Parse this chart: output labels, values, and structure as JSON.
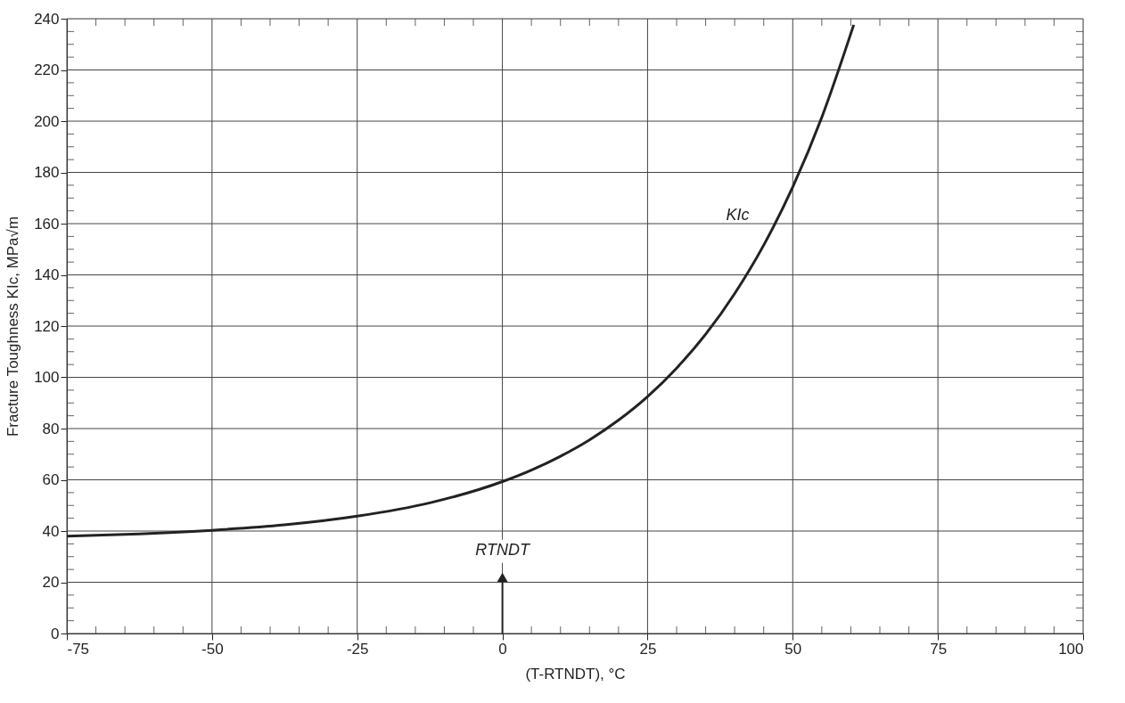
{
  "chart_data": {
    "type": "line",
    "xlabel": "(T-RTNDT), °C",
    "ylabel": "Fracture Toughness KIc, MPa√m",
    "x": [
      -75,
      -62.5,
      -50,
      -37.5,
      -25,
      -12.5,
      0,
      5,
      10,
      15,
      20,
      25,
      30,
      35,
      40,
      45,
      50,
      55,
      60.5
    ],
    "series": [
      {
        "color": "#222222",
        "values": [
          38,
          38.9,
          40.3,
          42.4,
          45.8,
          51,
          59.3,
          63.8,
          69.2,
          75.6,
          83.3,
          92.5,
          103.6,
          116.8,
          132.7,
          151.6,
          174.3,
          201.5,
          237.6
        ]
      }
    ],
    "xlim": [
      -75,
      100
    ],
    "xticks": [
      -75,
      {
        "value": -70,
        "label": null
      },
      {
        "value": -65,
        "label": null
      },
      {
        "value": -60,
        "label": null
      },
      {
        "value": -55,
        "label": null
      },
      -50,
      {
        "value": -45,
        "label": null
      },
      {
        "value": -40,
        "label": null
      },
      {
        "value": -35,
        "label": null
      },
      {
        "value": -30,
        "label": null
      },
      -25,
      {
        "value": -20,
        "label": null
      },
      {
        "value": -15,
        "label": null
      },
      {
        "value": -10,
        "label": null
      },
      {
        "value": -5,
        "label": null
      },
      0,
      {
        "value": 5,
        "label": null
      },
      {
        "value": 10,
        "label": null
      },
      {
        "value": 15,
        "label": null
      },
      {
        "value": 20,
        "label": null
      },
      25,
      {
        "value": 30,
        "label": null
      },
      {
        "value": 35,
        "label": null
      },
      {
        "value": 40,
        "label": null
      },
      {
        "value": 45,
        "label": null
      },
      50,
      {
        "value": 55,
        "label": null
      },
      {
        "value": 60,
        "label": null
      },
      {
        "value": 65,
        "label": null
      },
      {
        "value": 70,
        "label": null
      },
      75,
      {
        "value": 80,
        "label": null
      },
      {
        "value": 85,
        "label": null
      },
      {
        "value": 90,
        "label": null
      },
      {
        "value": 95,
        "label": null
      },
      100
    ],
    "ylim": [
      0,
      240
    ],
    "yticks": [
      0,
      {
        "value": 5,
        "label": null
      },
      {
        "value": 10,
        "label": null
      },
      {
        "value": 15,
        "label": null
      },
      20,
      {
        "value": 25,
        "label": null
      },
      {
        "value": 30,
        "label": null
      },
      {
        "value": 35,
        "label": null
      },
      40,
      {
        "value": 45,
        "label": null
      },
      {
        "value": 50,
        "label": null
      },
      {
        "value": 55,
        "label": null
      },
      60,
      {
        "value": 65,
        "label": null
      },
      {
        "value": 70,
        "label": null
      },
      {
        "value": 75,
        "label": null
      },
      80,
      {
        "value": 85,
        "label": null
      },
      {
        "value": 90,
        "label": null
      },
      {
        "value": 95,
        "label": null
      },
      100,
      {
        "value": 105,
        "label": null
      },
      {
        "value": 110,
        "label": null
      },
      {
        "value": 115,
        "label": null
      },
      120,
      {
        "value": 125,
        "label": null
      },
      {
        "value": 130,
        "label": null
      },
      {
        "value": 135,
        "label": null
      },
      140,
      {
        "value": 145,
        "label": null
      },
      {
        "value": 150,
        "label": null
      },
      {
        "value": 155,
        "label": null
      },
      160,
      {
        "value": 165,
        "label": null
      },
      {
        "value": 170,
        "label": null
      },
      {
        "value": 175,
        "label": null
      },
      180,
      {
        "value": 185,
        "label": null
      },
      {
        "value": 190,
        "label": null
      },
      {
        "value": 195,
        "label": null
      },
      200,
      {
        "value": 205,
        "label": null
      },
      {
        "value": 210,
        "label": null
      },
      {
        "value": 215,
        "label": null
      },
      220,
      {
        "value": 225,
        "label": null
      },
      {
        "value": 230,
        "label": null
      },
      {
        "value": 235,
        "label": null
      },
      240
    ],
    "grid": true,
    "marker": "none",
    "line_style": "solid",
    "annotations": [
      "KIc",
      "RTNDT"
    ]
  }
}
